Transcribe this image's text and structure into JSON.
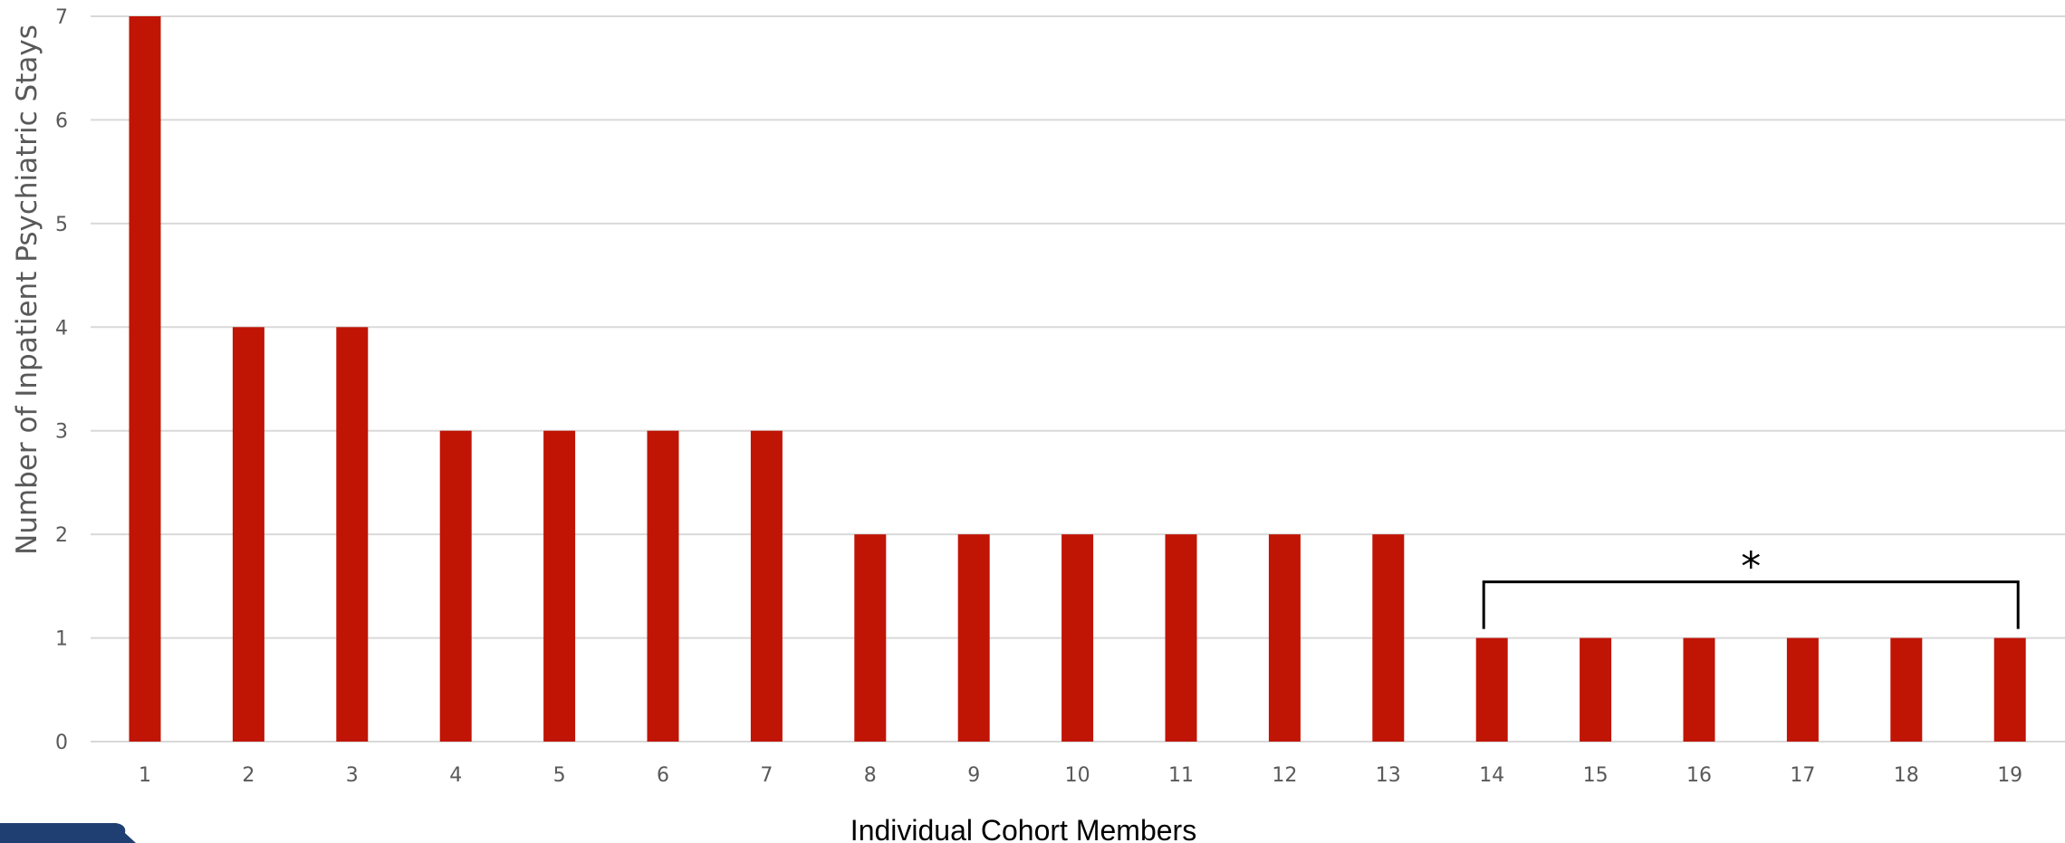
{
  "colors": {
    "bar": "#c01405",
    "grid": "#d9d9d9",
    "tick_text": "#595959"
  },
  "chart_data": {
    "type": "bar",
    "categories": [
      "1",
      "2",
      "3",
      "4",
      "5",
      "6",
      "7",
      "8",
      "9",
      "10",
      "11",
      "12",
      "13",
      "14",
      "15",
      "16",
      "17",
      "18",
      "19"
    ],
    "values": [
      7,
      4,
      4,
      3,
      3,
      3,
      3,
      2,
      2,
      2,
      2,
      2,
      2,
      1,
      1,
      1,
      1,
      1,
      1
    ],
    "title": "",
    "xlabel": "Individual Cohort Members",
    "ylabel": "Number of Inpatient Psychiatric  Stays",
    "ylim": [
      0,
      7
    ],
    "yticks": [
      0,
      1,
      2,
      3,
      4,
      5,
      6,
      7
    ],
    "grid": "horizontal",
    "legend": "none",
    "annotation": {
      "text": "*",
      "from_category": "14",
      "to_category": "19",
      "type": "bracket"
    }
  }
}
